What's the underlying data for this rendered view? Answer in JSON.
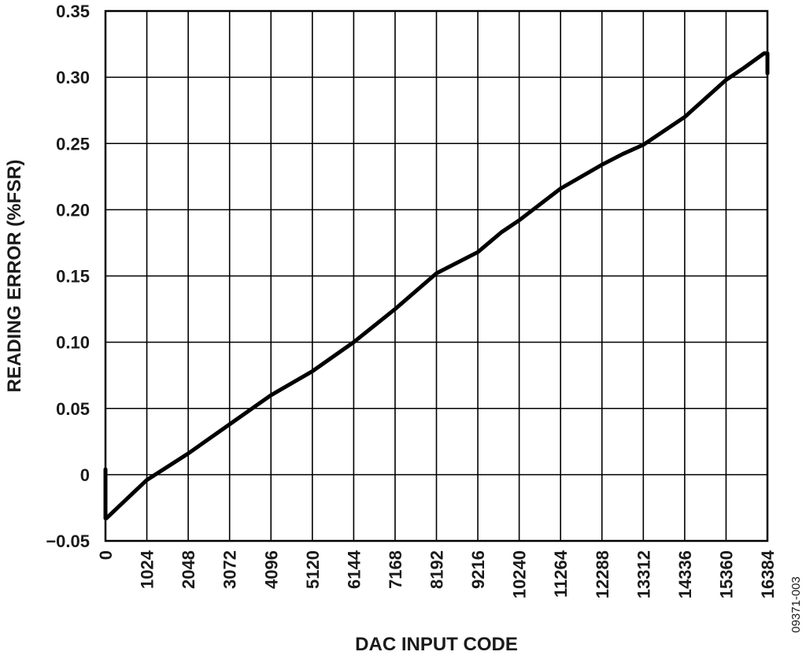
{
  "chart_data": {
    "type": "line",
    "xlabel": "DAC INPUT CODE",
    "ylabel": "READING ERROR (%FSR)",
    "figure_id": "09371-003",
    "xlim": [
      0,
      16384
    ],
    "ylim": [
      -0.05,
      0.35
    ],
    "x_ticks": [
      0,
      1024,
      2048,
      3072,
      4096,
      5120,
      6144,
      7168,
      8192,
      9216,
      10240,
      11264,
      12288,
      13312,
      14336,
      15360,
      16384
    ],
    "x_tick_labels": [
      "0",
      "1024",
      "2048",
      "3072",
      "4096",
      "5120",
      "6144",
      "7168",
      "8192",
      "9216",
      "10240",
      "11264",
      "12288",
      "13312",
      "14336",
      "15360",
      "16384"
    ],
    "y_ticks": [
      -0.05,
      0,
      0.05,
      0.1,
      0.15,
      0.2,
      0.25,
      0.3,
      0.35
    ],
    "y_tick_labels": [
      "−0.05",
      "0",
      "0.05",
      "0.10",
      "0.15",
      "0.20",
      "0.25",
      "0.30",
      "0.35"
    ],
    "grid": true,
    "line_color": "#000000",
    "series": [
      {
        "x": [
          0,
          0,
          0,
          20,
          400,
          1024,
          2048,
          3072,
          4096,
          5120,
          6144,
          7168,
          8192,
          9216,
          9800,
          10240,
          11264,
          12288,
          12800,
          13312,
          14336,
          15360,
          15800,
          16300,
          16384,
          16384
        ],
        "y": [
          0.004,
          -0.03,
          -0.033,
          -0.033,
          -0.022,
          -0.004,
          0.016,
          0.038,
          0.06,
          0.078,
          0.1,
          0.125,
          0.152,
          0.168,
          0.183,
          0.192,
          0.216,
          0.234,
          0.242,
          0.249,
          0.27,
          0.298,
          0.307,
          0.318,
          0.318,
          0.303
        ]
      }
    ]
  }
}
